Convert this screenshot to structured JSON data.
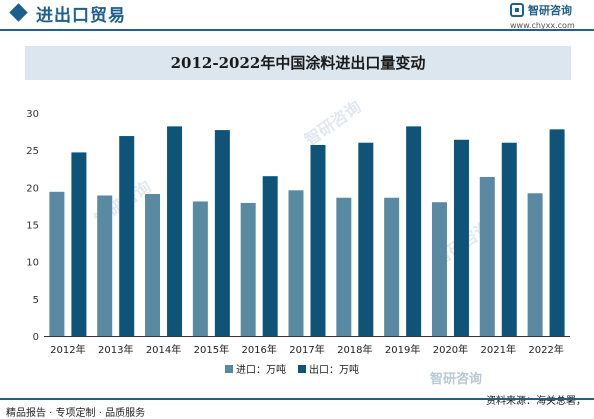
{
  "header": {
    "section_title": "进出口贸易",
    "logo_name": "智研咨询",
    "logo_url": "www.chyxx.com"
  },
  "chart_data": {
    "type": "bar",
    "title": "2012-2022年中国涂料进出口量变动",
    "categories": [
      "2012年",
      "2013年",
      "2014年",
      "2015年",
      "2016年",
      "2017年",
      "2018年",
      "2019年",
      "2020年",
      "2021年",
      "2022年"
    ],
    "series": [
      {
        "name": "进口：万吨",
        "color": "#5a8aa2",
        "values": [
          19.4,
          18.9,
          19.1,
          18.1,
          17.9,
          19.6,
          18.6,
          18.6,
          18.0,
          21.4,
          19.2
        ]
      },
      {
        "name": "出口：万吨",
        "color": "#0f5478",
        "values": [
          24.7,
          26.9,
          28.2,
          27.7,
          21.5,
          25.7,
          26.0,
          28.2,
          26.4,
          26.0,
          27.8
        ]
      }
    ],
    "ylim": [
      0,
      30
    ],
    "yticks": [
      0,
      5,
      10,
      15,
      20,
      25,
      30
    ],
    "grid": false,
    "legend": "bottom"
  },
  "footer": {
    "left": "精品报告 · 专项定制 · 品质服务",
    "right": "资料来源：海关总署，",
    "logo": "智研咨询"
  },
  "colors": {
    "brand": "#1f5f8b",
    "title_bg": "#dbe6ee"
  }
}
